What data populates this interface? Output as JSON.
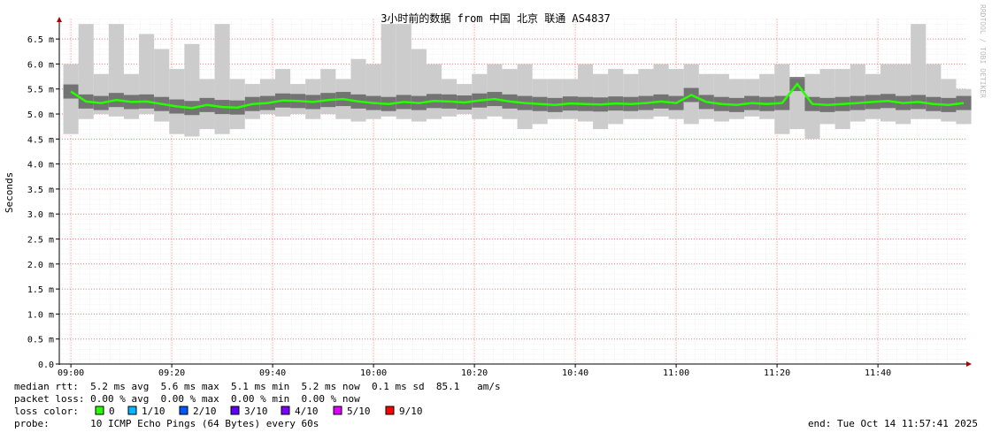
{
  "chart_data": {
    "type": "smokeping",
    "title": "3小时前的数据 from 中国 北京 联通 AS4837",
    "y_label": "Seconds",
    "watermark": "RRDTOOL / TOBI OETIKER",
    "color": "#26ff00",
    "smoke_color": "#cccccc",
    "grid": true,
    "xlim": [
      537.7,
      717.7
    ],
    "xticks": [
      {
        "value": 540,
        "label": "09:00"
      },
      {
        "value": 560,
        "label": "09:20"
      },
      {
        "value": 580,
        "label": "09:40"
      },
      {
        "value": 600,
        "label": "10:00"
      },
      {
        "value": 620,
        "label": "10:20"
      },
      {
        "value": 640,
        "label": "10:40"
      },
      {
        "value": 660,
        "label": "11:00"
      },
      {
        "value": 680,
        "label": "11:20"
      },
      {
        "value": 700,
        "label": "11:40"
      }
    ],
    "ylim": [
      0,
      6.9
    ],
    "yticks": [
      {
        "value": 0,
        "label": "0.0"
      },
      {
        "value": 0.5,
        "label": "0.5 m"
      },
      {
        "value": 1.0,
        "label": "1.0 m"
      },
      {
        "value": 1.5,
        "label": "1.5 m"
      },
      {
        "value": 2.0,
        "label": "2.0 m"
      },
      {
        "value": 2.5,
        "label": "2.5 m"
      },
      {
        "value": 3.0,
        "label": "3.0 m"
      },
      {
        "value": 3.5,
        "label": "3.5 m"
      },
      {
        "value": 4.0,
        "label": "4.0 m"
      },
      {
        "value": 4.5,
        "label": "4.5 m"
      },
      {
        "value": 5.0,
        "label": "5.0 m"
      },
      {
        "value": 5.5,
        "label": "5.5 m"
      },
      {
        "value": 6.0,
        "label": "6.0 m"
      },
      {
        "value": 6.5,
        "label": "6.5 m"
      }
    ],
    "x": [
      540,
      543,
      546,
      549,
      552,
      555,
      558,
      561,
      564,
      567,
      570,
      573,
      576,
      579,
      582,
      585,
      588,
      591,
      594,
      597,
      600,
      603,
      606,
      609,
      612,
      615,
      618,
      621,
      624,
      627,
      630,
      633,
      636,
      639,
      642,
      645,
      648,
      651,
      654,
      657,
      660,
      663,
      666,
      669,
      672,
      675,
      678,
      681,
      684,
      687,
      690,
      693,
      696,
      699,
      702,
      705,
      708,
      711,
      714,
      717
    ],
    "values": [
      5.45,
      5.25,
      5.22,
      5.28,
      5.24,
      5.25,
      5.2,
      5.15,
      5.12,
      5.18,
      5.14,
      5.13,
      5.2,
      5.22,
      5.27,
      5.26,
      5.24,
      5.28,
      5.3,
      5.25,
      5.22,
      5.2,
      5.24,
      5.22,
      5.26,
      5.25,
      5.23,
      5.27,
      5.3,
      5.25,
      5.22,
      5.2,
      5.18,
      5.21,
      5.2,
      5.19,
      5.21,
      5.2,
      5.22,
      5.25,
      5.22,
      5.38,
      5.24,
      5.2,
      5.18,
      5.22,
      5.2,
      5.22,
      5.6,
      5.2,
      5.18,
      5.2,
      5.22,
      5.24,
      5.26,
      5.22,
      5.24,
      5.2,
      5.18,
      5.22
    ],
    "low": [
      4.6,
      4.9,
      5.0,
      4.95,
      4.9,
      5.0,
      4.85,
      4.6,
      4.55,
      4.7,
      4.6,
      4.7,
      4.9,
      5.0,
      4.95,
      5.0,
      4.9,
      5.0,
      4.9,
      4.85,
      4.9,
      4.95,
      4.9,
      4.85,
      4.9,
      4.95,
      5.0,
      4.9,
      4.95,
      4.9,
      4.7,
      4.8,
      4.9,
      4.9,
      4.85,
      4.7,
      4.8,
      4.9,
      4.9,
      4.95,
      4.9,
      4.8,
      4.9,
      4.85,
      4.9,
      4.95,
      4.9,
      4.6,
      4.7,
      4.5,
      4.8,
      4.7,
      4.85,
      4.9,
      4.85,
      4.8,
      4.9,
      4.9,
      4.85,
      4.8
    ],
    "high": [
      6.0,
      6.8,
      5.8,
      6.8,
      5.8,
      6.6,
      6.3,
      5.9,
      6.4,
      5.7,
      6.8,
      5.7,
      5.6,
      5.7,
      5.9,
      5.6,
      5.7,
      5.9,
      5.7,
      6.1,
      6.0,
      6.8,
      6.8,
      6.3,
      6.0,
      5.7,
      5.6,
      5.8,
      6.0,
      5.9,
      6.0,
      5.7,
      5.7,
      5.7,
      6.0,
      5.8,
      5.9,
      5.8,
      5.9,
      6.0,
      5.9,
      6.0,
      5.8,
      5.8,
      5.7,
      5.7,
      5.8,
      6.0,
      5.7,
      5.8,
      5.9,
      5.9,
      6.0,
      5.8,
      6.0,
      6.0,
      6.8,
      6.0,
      5.7,
      5.5
    ]
  },
  "legend": {
    "median_rtt": "median rtt:  5.2 ms avg  5.6 ms max  5.1 ms min  5.2 ms now  0.1 ms sd  85.1   am/s",
    "packet_loss": "packet loss: 0.00 % avg  0.00 % max  0.00 % min  0.00 % now",
    "loss_color_label": "loss color:",
    "loss_colors": [
      {
        "label": "0",
        "color": "#26ff00"
      },
      {
        "label": "1/10",
        "color": "#00b8ff"
      },
      {
        "label": "2/10",
        "color": "#0059ff"
      },
      {
        "label": "3/10",
        "color": "#5e00ff"
      },
      {
        "label": "4/10",
        "color": "#7e00ff"
      },
      {
        "label": "5/10",
        "color": "#dd00ff"
      },
      {
        "label": "9/10",
        "color": "#ff0000"
      }
    ],
    "probe": "probe:       10 ICMP Echo Pings (64 Bytes) every 60s",
    "end": "end: Tue Oct 14 11:57:41 2025"
  }
}
